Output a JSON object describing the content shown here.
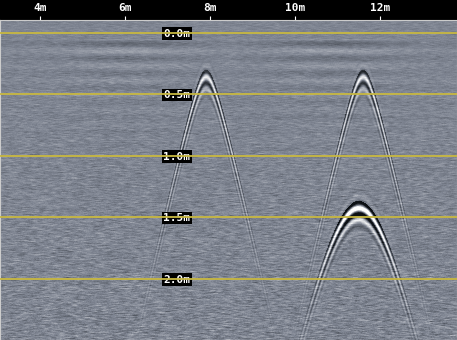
{
  "chart_data": {
    "type": "radargram",
    "xlim": [
      3.05,
      13.8
    ],
    "xticks": [
      {
        "value": 4,
        "label": "4m"
      },
      {
        "value": 6,
        "label": "6m"
      },
      {
        "value": 8,
        "label": "8m"
      },
      {
        "value": 10,
        "label": "10m"
      },
      {
        "value": 12,
        "label": "12m"
      }
    ],
    "ylim": [
      2.5,
      -0.1
    ],
    "yticks": [
      {
        "value": 0.0,
        "label": "0.0m"
      },
      {
        "value": 0.5,
        "label": "0.5m"
      },
      {
        "value": 1.0,
        "label": "1.0m"
      },
      {
        "value": 1.5,
        "label": "1.5m"
      },
      {
        "value": 2.0,
        "label": "2.0m"
      }
    ],
    "grid": true,
    "color": "#c8b840",
    "targets": [
      {
        "x": 7.9,
        "depth": 0.36
      },
      {
        "x": 11.6,
        "depth": 0.36
      },
      {
        "x": 11.5,
        "depth": 1.43
      }
    ]
  }
}
